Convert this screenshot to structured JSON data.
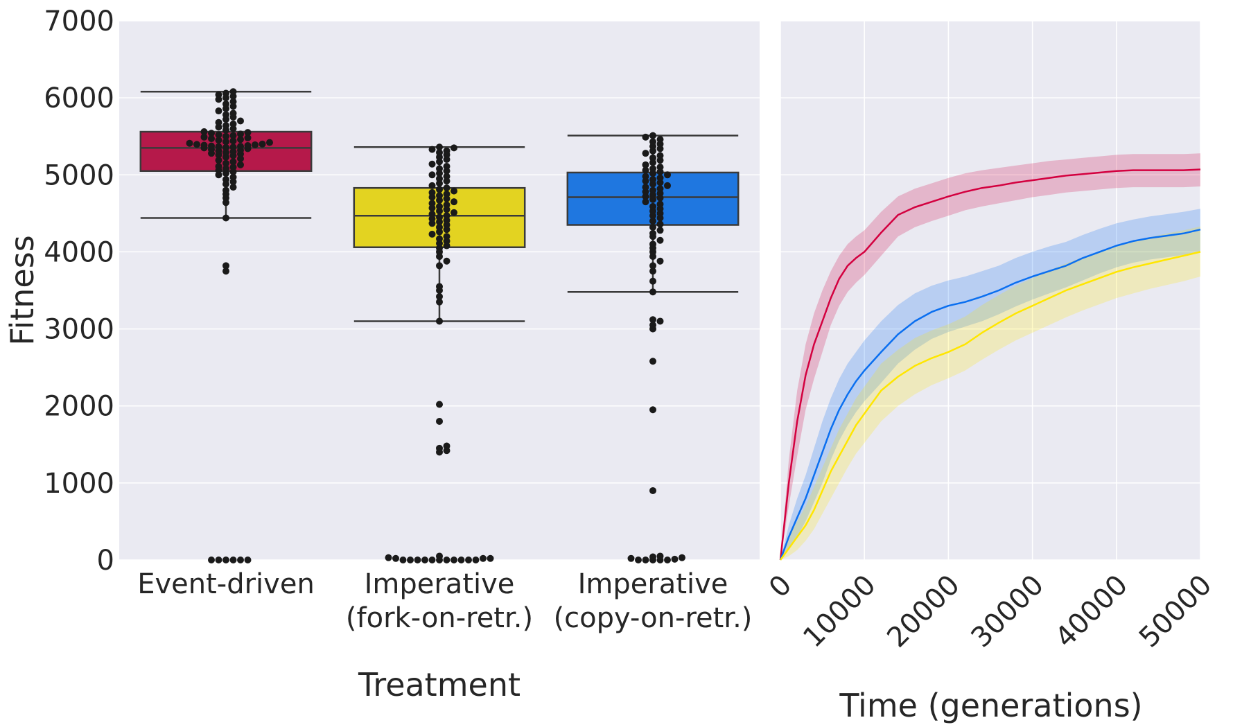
{
  "colors": {
    "panel_bg": "#eaeaf2",
    "grid": "#ffffff",
    "event_driven": "#b5194a",
    "fork_on_retr": "#e3d321",
    "copy_on_retr": "#1f77e0",
    "line_event_driven": "#d3003f",
    "line_fork_on_retr": "#ffe600",
    "line_copy_on_retr": "#0a6ff0",
    "swarm_point": "#1a1a1a",
    "box_edge": "#3a3a3a"
  },
  "chart_data": [
    {
      "type": "box",
      "xlabel": "Treatment",
      "ylabel": "Fitness",
      "ylim": [
        0,
        7000
      ],
      "yticks": [
        0,
        1000,
        2000,
        3000,
        4000,
        5000,
        6000,
        7000
      ],
      "ytick_labels": [
        "0",
        "1000",
        "2000",
        "3000",
        "4000",
        "5000",
        "6000",
        "7000"
      ],
      "grid": true,
      "categories": [
        {
          "label_line1": "Event-driven",
          "label_line2": "",
          "color_key": "event_driven"
        },
        {
          "label_line1": "Imperative",
          "label_line2": "(fork-on-retr.)",
          "color_key": "fork_on_retr"
        },
        {
          "label_line1": "Imperative",
          "label_line2": "(copy-on-retr.)",
          "color_key": "copy_on_retr"
        }
      ],
      "boxes": [
        {
          "q1": 5050,
          "median": 5350,
          "q3": 5560,
          "whisker_low": 4440,
          "whisker_high": 6080
        },
        {
          "q1": 4060,
          "median": 4470,
          "q3": 4830,
          "whisker_low": 3100,
          "whisker_high": 5360
        },
        {
          "q1": 4350,
          "median": 4710,
          "q3": 5030,
          "whisker_low": 3480,
          "whisker_high": 5510
        }
      ],
      "points": [
        [
          0,
          0,
          0,
          0,
          0,
          0,
          3750,
          3820,
          4440,
          4640,
          4700,
          4750,
          4800,
          4840,
          4880,
          4910,
          4940,
          4970,
          5000,
          5020,
          5040,
          5060,
          5080,
          5100,
          5110,
          5130,
          5150,
          5170,
          5190,
          5210,
          5230,
          5250,
          5260,
          5270,
          5280,
          5290,
          5300,
          5310,
          5320,
          5330,
          5340,
          5350,
          5355,
          5360,
          5365,
          5370,
          5375,
          5380,
          5385,
          5390,
          5395,
          5400,
          5410,
          5420,
          5430,
          5440,
          5450,
          5460,
          5470,
          5480,
          5490,
          5500,
          5510,
          5520,
          5530,
          5540,
          5550,
          5560,
          5580,
          5600,
          5620,
          5640,
          5660,
          5680,
          5700,
          5720,
          5750,
          5780,
          5800,
          5830,
          5860,
          5890,
          5920,
          5950,
          5980,
          6000,
          6020,
          6040,
          6060,
          6080
        ],
        [
          0,
          0,
          0,
          0,
          0,
          0,
          0,
          0,
          0,
          0,
          0,
          20,
          20,
          20,
          30,
          50,
          1400,
          1420,
          1450,
          1480,
          1800,
          2020,
          3100,
          3350,
          3420,
          3500,
          3550,
          3820,
          3880,
          3940,
          4000,
          4050,
          4080,
          4110,
          4140,
          4170,
          4200,
          4230,
          4260,
          4290,
          4320,
          4350,
          4370,
          4390,
          4410,
          4430,
          4450,
          4470,
          4490,
          4510,
          4530,
          4550,
          4570,
          4590,
          4610,
          4630,
          4650,
          4670,
          4690,
          4710,
          4730,
          4750,
          4770,
          4790,
          4810,
          4830,
          4860,
          4890,
          4920,
          4950,
          4980,
          5000,
          5020,
          5050,
          5080,
          5110,
          5140,
          5170,
          5200,
          5230,
          5260,
          5290,
          5310,
          5330,
          5350,
          5360
        ],
        [
          0,
          0,
          0,
          0,
          0,
          10,
          20,
          30,
          40,
          50,
          900,
          1950,
          2580,
          3000,
          3050,
          3100,
          3120,
          3480,
          3620,
          3750,
          3820,
          3880,
          3940,
          4000,
          4050,
          4100,
          4150,
          4200,
          4240,
          4280,
          4320,
          4360,
          4400,
          4440,
          4470,
          4500,
          4530,
          4560,
          4590,
          4620,
          4650,
          4680,
          4700,
          4720,
          4740,
          4760,
          4780,
          4800,
          4820,
          4840,
          4860,
          4880,
          4900,
          4920,
          4940,
          4960,
          4980,
          5000,
          5020,
          5040,
          5060,
          5080,
          5100,
          5130,
          5160,
          5190,
          5220,
          5250,
          5280,
          5310,
          5340,
          5370,
          5400,
          5430,
          5460,
          5490,
          5510
        ]
      ]
    },
    {
      "type": "line",
      "xlabel": "Time (generations)",
      "ylabel": "",
      "xlim": [
        0,
        50000
      ],
      "ylim": [
        0,
        7000
      ],
      "xticks": [
        0,
        10000,
        20000,
        30000,
        40000,
        50000
      ],
      "xtick_labels": [
        "0",
        "10000",
        "20000",
        "30000",
        "40000",
        "50000"
      ],
      "grid": true,
      "x": [
        0,
        1000,
        2000,
        3000,
        4000,
        5000,
        6000,
        7000,
        8000,
        9000,
        10000,
        12000,
        14000,
        16000,
        18000,
        20000,
        22000,
        24000,
        26000,
        28000,
        30000,
        32000,
        34000,
        36000,
        38000,
        40000,
        42000,
        44000,
        46000,
        48000,
        50000
      ],
      "series": [
        {
          "color_key": "line_event_driven",
          "mean": [
            0,
            1000,
            1800,
            2400,
            2800,
            3100,
            3400,
            3650,
            3820,
            3920,
            4000,
            4250,
            4480,
            4580,
            4650,
            4720,
            4780,
            4830,
            4860,
            4900,
            4930,
            4960,
            4990,
            5010,
            5030,
            5050,
            5060,
            5060,
            5060,
            5060,
            5070
          ],
          "lower": [
            0,
            700,
            1350,
            1950,
            2350,
            2700,
            3050,
            3300,
            3480,
            3600,
            3700,
            3950,
            4200,
            4320,
            4400,
            4470,
            4540,
            4590,
            4630,
            4670,
            4710,
            4740,
            4770,
            4790,
            4810,
            4830,
            4840,
            4840,
            4840,
            4840,
            4850
          ],
          "upper": [
            0,
            1300,
            2200,
            2800,
            3200,
            3500,
            3750,
            3950,
            4100,
            4200,
            4280,
            4520,
            4720,
            4820,
            4890,
            4960,
            5020,
            5060,
            5090,
            5120,
            5150,
            5180,
            5200,
            5220,
            5240,
            5260,
            5270,
            5270,
            5270,
            5270,
            5280
          ]
        },
        {
          "color_key": "line_copy_on_retr",
          "mean": [
            0,
            300,
            550,
            800,
            1100,
            1400,
            1700,
            1950,
            2150,
            2320,
            2460,
            2700,
            2930,
            3100,
            3220,
            3300,
            3350,
            3420,
            3500,
            3600,
            3680,
            3750,
            3820,
            3920,
            4000,
            4080,
            4140,
            4180,
            4210,
            4240,
            4290
          ],
          "lower": [
            0,
            150,
            300,
            500,
            750,
            1000,
            1300,
            1550,
            1750,
            1920,
            2060,
            2300,
            2550,
            2730,
            2870,
            2960,
            3030,
            3100,
            3190,
            3290,
            3380,
            3460,
            3540,
            3630,
            3720,
            3800,
            3860,
            3900,
            3930,
            3960,
            4010
          ],
          "upper": [
            0,
            450,
            800,
            1100,
            1450,
            1800,
            2100,
            2350,
            2550,
            2700,
            2850,
            3100,
            3310,
            3460,
            3560,
            3630,
            3680,
            3750,
            3820,
            3920,
            4000,
            4070,
            4130,
            4220,
            4300,
            4370,
            4420,
            4460,
            4490,
            4520,
            4560
          ]
        },
        {
          "color_key": "line_fork_on_retr",
          "mean": [
            0,
            150,
            300,
            450,
            650,
            900,
            1150,
            1350,
            1550,
            1750,
            1900,
            2200,
            2380,
            2520,
            2620,
            2700,
            2800,
            2950,
            3080,
            3200,
            3300,
            3400,
            3500,
            3580,
            3660,
            3740,
            3800,
            3850,
            3900,
            3950,
            4000
          ],
          "lower": [
            0,
            50,
            130,
            250,
            400,
            600,
            800,
            1000,
            1200,
            1380,
            1520,
            1800,
            2000,
            2150,
            2270,
            2360,
            2460,
            2600,
            2730,
            2850,
            2950,
            3050,
            3150,
            3240,
            3320,
            3400,
            3460,
            3520,
            3570,
            3620,
            3680
          ],
          "upper": [
            0,
            300,
            500,
            700,
            950,
            1200,
            1450,
            1700,
            1900,
            2100,
            2250,
            2550,
            2730,
            2880,
            2980,
            3060,
            3160,
            3310,
            3440,
            3560,
            3660,
            3760,
            3850,
            3930,
            4010,
            4080,
            4140,
            4190,
            4240,
            4280,
            4330
          ]
        }
      ]
    }
  ]
}
